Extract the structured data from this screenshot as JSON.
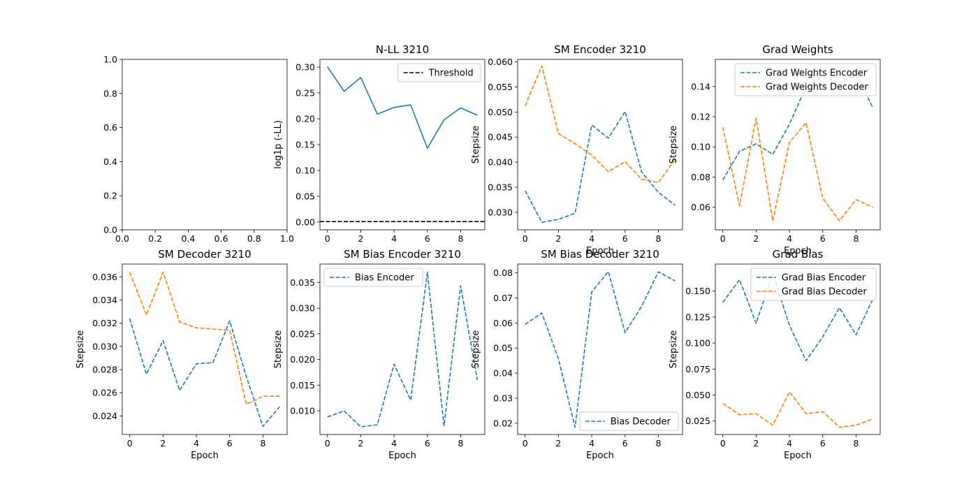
{
  "figure": {
    "colors": {
      "C0": "#1f77b4",
      "C1": "#ff7f0e",
      "threshold": "#000000"
    }
  },
  "chart_data": [
    {
      "id": "empty",
      "type": "line",
      "title": "",
      "xlabel": "",
      "ylabel": "",
      "xlim": [
        0,
        1
      ],
      "ylim": [
        0,
        1
      ],
      "xticks": [
        0,
        0.2,
        0.4,
        0.6,
        0.8,
        1
      ],
      "xtick_labels": [
        "0.0",
        "0.2",
        "0.4",
        "0.6",
        "0.8",
        "1.0"
      ],
      "yticks": [
        0,
        0.2,
        0.4,
        0.6,
        0.8,
        1
      ],
      "ytick_labels": [
        "0.0",
        "0.2",
        "0.4",
        "0.6",
        "0.8",
        "1.0"
      ],
      "series": [],
      "legend": null
    },
    {
      "id": "nll",
      "type": "line",
      "title": "N-LL 3210",
      "xlabel": "",
      "ylabel": "log1p (-LL)",
      "xlim": [
        -0.45,
        9.45
      ],
      "ylim": [
        -0.015,
        0.315
      ],
      "xticks": [
        0,
        2,
        4,
        6,
        8
      ],
      "xtick_labels": [
        "0",
        "2",
        "4",
        "6",
        "8"
      ],
      "yticks": [
        0,
        0.05,
        0.1,
        0.15,
        0.2,
        0.25,
        0.3
      ],
      "ytick_labels": [
        "0.00",
        "0.05",
        "0.10",
        "0.15",
        "0.20",
        "0.25",
        "0.30"
      ],
      "series": [
        {
          "name": "",
          "color": "#1f77b4",
          "style": "solid",
          "x": [
            0,
            1,
            2,
            3,
            4,
            5,
            6,
            7,
            8,
            9
          ],
          "y": [
            0.301,
            0.253,
            0.28,
            0.209,
            0.222,
            0.227,
            0.143,
            0.198,
            0.221,
            0.207
          ]
        }
      ],
      "hlines": [
        {
          "name": "Threshold",
          "y": 0.001,
          "color": "#000000",
          "style": "dashed"
        }
      ],
      "legend": {
        "placement": "top-right",
        "entries": [
          {
            "label": "Threshold",
            "color": "#000000",
            "style": "dashed"
          }
        ]
      }
    },
    {
      "id": "sm-encoder",
      "type": "line",
      "title": "SM Encoder 3210",
      "xlabel": "Epoch",
      "ylabel": "Stepsize",
      "xlim": [
        -0.45,
        9.45
      ],
      "ylim": [
        0.0265,
        0.0605
      ],
      "xticks": [
        0,
        2,
        4,
        6,
        8
      ],
      "xtick_labels": [
        "0",
        "2",
        "4",
        "6",
        "8"
      ],
      "yticks": [
        0.03,
        0.035,
        0.04,
        0.045,
        0.05,
        0.055,
        0.06
      ],
      "ytick_labels": [
        "0.030",
        "0.035",
        "0.040",
        "0.045",
        "0.050",
        "0.055",
        "0.060"
      ],
      "series": [
        {
          "name": "",
          "color": "#1f77b4",
          "style": "dashed",
          "x": [
            0,
            1,
            2,
            3,
            4,
            5,
            6,
            7,
            8,
            9
          ],
          "y": [
            0.0343,
            0.028,
            0.0286,
            0.0298,
            0.0474,
            0.0448,
            0.0501,
            0.038,
            0.034,
            0.0314
          ]
        },
        {
          "name": "",
          "color": "#ff7f0e",
          "style": "dashed",
          "x": [
            0,
            1,
            2,
            3,
            4,
            5,
            6,
            7,
            8,
            9
          ],
          "y": [
            0.0512,
            0.0592,
            0.0457,
            0.0437,
            0.0414,
            0.0381,
            0.0401,
            0.0366,
            0.0359,
            0.0405
          ]
        }
      ],
      "legend": null
    },
    {
      "id": "grad-weights",
      "type": "line",
      "title": "Grad Weights",
      "xlabel": "Epoch",
      "ylabel": "Stepsize",
      "xlim": [
        -0.45,
        9.45
      ],
      "ylim": [
        0.045,
        0.158
      ],
      "xticks": [
        0,
        2,
        4,
        6,
        8
      ],
      "xtick_labels": [
        "0",
        "2",
        "4",
        "6",
        "8"
      ],
      "yticks": [
        0.06,
        0.08,
        0.1,
        0.12,
        0.14
      ],
      "ytick_labels": [
        "0.06",
        "0.08",
        "0.10",
        "0.12",
        "0.14"
      ],
      "series": [
        {
          "name": "Grad Weights Encoder",
          "color": "#1f77b4",
          "style": "dashed",
          "x": [
            0,
            1,
            2,
            3,
            4,
            5,
            6,
            7,
            8,
            9
          ],
          "y": [
            0.078,
            0.097,
            0.102,
            0.095,
            0.115,
            0.14,
            0.147,
            0.142,
            0.149,
            0.126
          ]
        },
        {
          "name": "Grad Weights Decoder",
          "color": "#ff7f0e",
          "style": "dashed",
          "x": [
            0,
            1,
            2,
            3,
            4,
            5,
            6,
            7,
            8,
            9
          ],
          "y": [
            0.113,
            0.061,
            0.119,
            0.051,
            0.103,
            0.116,
            0.066,
            0.051,
            0.065,
            0.06
          ]
        }
      ],
      "legend": {
        "placement": "top-right",
        "entries": [
          {
            "label": "Grad Weights Encoder",
            "color": "#1f77b4",
            "style": "dashed"
          },
          {
            "label": "Grad Weights Decoder",
            "color": "#ff7f0e",
            "style": "dashed"
          }
        ]
      }
    },
    {
      "id": "sm-decoder",
      "type": "line",
      "title": "SM Decoder 3210",
      "xlabel": "Epoch",
      "ylabel": "Stepsize",
      "xlim": [
        -0.45,
        9.45
      ],
      "ylim": [
        0.0224,
        0.0371
      ],
      "xticks": [
        0,
        2,
        4,
        6,
        8
      ],
      "xtick_labels": [
        "0",
        "2",
        "4",
        "6",
        "8"
      ],
      "yticks": [
        0.024,
        0.026,
        0.028,
        0.03,
        0.032,
        0.034,
        0.036
      ],
      "ytick_labels": [
        "0.024",
        "0.026",
        "0.028",
        "0.030",
        "0.032",
        "0.034",
        "0.036"
      ],
      "series": [
        {
          "name": "",
          "color": "#1f77b4",
          "style": "dashed",
          "x": [
            0,
            1,
            2,
            3,
            4,
            5,
            6,
            7,
            8,
            9
          ],
          "y": [
            0.0324,
            0.0276,
            0.0305,
            0.0262,
            0.0285,
            0.0286,
            0.0322,
            0.0274,
            0.0231,
            0.0248
          ]
        },
        {
          "name": "",
          "color": "#ff7f0e",
          "style": "dashed",
          "x": [
            0,
            1,
            2,
            3,
            4,
            5,
            6,
            7,
            8,
            9
          ],
          "y": [
            0.0364,
            0.0327,
            0.0364,
            0.0321,
            0.0316,
            0.0315,
            0.0314,
            0.025,
            0.0257,
            0.0257
          ]
        }
      ],
      "legend": null
    },
    {
      "id": "sm-bias-encoder",
      "type": "line",
      "title": "SM Bias Encoder 3210",
      "xlabel": "Epoch",
      "ylabel": "Stepsize",
      "xlim": [
        -0.45,
        9.45
      ],
      "ylim": [
        0.0054,
        0.0386
      ],
      "xticks": [
        0,
        2,
        4,
        6,
        8
      ],
      "xtick_labels": [
        "0",
        "2",
        "4",
        "6",
        "8"
      ],
      "yticks": [
        0.01,
        0.015,
        0.02,
        0.025,
        0.03,
        0.035
      ],
      "ytick_labels": [
        "0.010",
        "0.015",
        "0.020",
        "0.025",
        "0.030",
        "0.035"
      ],
      "series": [
        {
          "name": "Bias Encoder",
          "color": "#1f77b4",
          "style": "dashed",
          "x": [
            0,
            1,
            2,
            3,
            4,
            5,
            6,
            7,
            8,
            9
          ],
          "y": [
            0.0088,
            0.01,
            0.0069,
            0.0073,
            0.0191,
            0.0121,
            0.037,
            0.0071,
            0.0344,
            0.016
          ]
        }
      ],
      "legend": {
        "placement": "top-left",
        "entries": [
          {
            "label": "Bias Encoder",
            "color": "#1f77b4",
            "style": "dashed"
          }
        ]
      }
    },
    {
      "id": "sm-bias-decoder",
      "type": "line",
      "title": "SM Bias Decoder 3210",
      "xlabel": "Epoch",
      "ylabel": "Stepsize",
      "xlim": [
        -0.45,
        9.45
      ],
      "ylim": [
        0.0155,
        0.0835
      ],
      "xticks": [
        0,
        2,
        4,
        6,
        8
      ],
      "xtick_labels": [
        "0",
        "2",
        "4",
        "6",
        "8"
      ],
      "yticks": [
        0.02,
        0.03,
        0.04,
        0.05,
        0.06,
        0.07,
        0.08
      ],
      "ytick_labels": [
        "0.02",
        "0.03",
        "0.04",
        "0.05",
        "0.06",
        "0.07",
        "0.08"
      ],
      "series": [
        {
          "name": "Bias Decoder",
          "color": "#1f77b4",
          "style": "dashed",
          "x": [
            0,
            1,
            2,
            3,
            4,
            5,
            6,
            7,
            8,
            9
          ],
          "y": [
            0.0594,
            0.064,
            0.0457,
            0.0184,
            0.0724,
            0.0805,
            0.0561,
            0.0667,
            0.0804,
            0.0768
          ]
        }
      ],
      "legend": {
        "placement": "bottom-right",
        "entries": [
          {
            "label": "Bias Decoder",
            "color": "#1f77b4",
            "style": "dashed"
          }
        ]
      }
    },
    {
      "id": "grad-bias",
      "type": "line",
      "title": "Grad Bias",
      "xlabel": "Epoch",
      "ylabel": "Stepsize",
      "xlim": [
        -0.45,
        9.45
      ],
      "ylim": [
        0.012,
        0.176
      ],
      "xticks": [
        0,
        2,
        4,
        6,
        8
      ],
      "xtick_labels": [
        "0",
        "2",
        "4",
        "6",
        "8"
      ],
      "yticks": [
        0.025,
        0.05,
        0.075,
        0.1,
        0.125,
        0.15
      ],
      "ytick_labels": [
        "0.025",
        "0.050",
        "0.075",
        "0.100",
        "0.125",
        "0.150"
      ],
      "series": [
        {
          "name": "Grad Bias Encoder",
          "color": "#1f77b4",
          "style": "dashed",
          "x": [
            0,
            1,
            2,
            3,
            4,
            5,
            6,
            7,
            8,
            9
          ],
          "y": [
            0.139,
            0.161,
            0.119,
            0.167,
            0.117,
            0.083,
            0.106,
            0.134,
            0.108,
            0.142
          ]
        },
        {
          "name": "Grad Bias Decoder",
          "color": "#ff7f0e",
          "style": "dashed",
          "x": [
            0,
            1,
            2,
            3,
            4,
            5,
            6,
            7,
            8,
            9
          ],
          "y": [
            0.042,
            0.031,
            0.032,
            0.021,
            0.053,
            0.032,
            0.034,
            0.019,
            0.021,
            0.027
          ]
        }
      ],
      "legend": {
        "placement": "top-right",
        "entries": [
          {
            "label": "Grad Bias Encoder",
            "color": "#1f77b4",
            "style": "dashed"
          },
          {
            "label": "Grad Bias Decoder",
            "color": "#ff7f0e",
            "style": "dashed"
          }
        ]
      }
    }
  ]
}
